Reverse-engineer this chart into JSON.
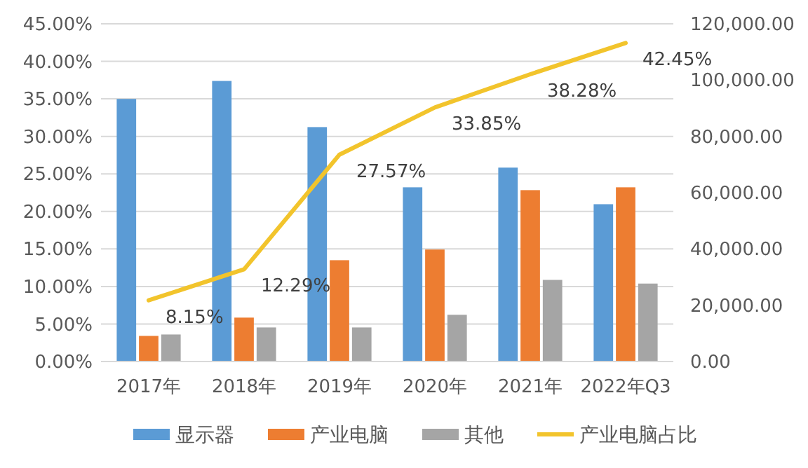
{
  "chart_data": {
    "type": "bar",
    "categories": [
      "2017年",
      "2018年",
      "2019年",
      "2020年",
      "2021年",
      "2022年Q3"
    ],
    "series": [
      {
        "name": "显示器",
        "color": "#5b9bd5",
        "axis": "y2",
        "values": [
          93300,
          99700,
          83300,
          61900,
          68900,
          55900
        ]
      },
      {
        "name": "产业电脑",
        "color": "#ed7d31",
        "axis": "y2",
        "values": [
          9100,
          15600,
          36000,
          39800,
          60900,
          61900
        ]
      },
      {
        "name": "其他",
        "color": "#a5a5a5",
        "axis": "y2",
        "values": [
          9600,
          12100,
          12100,
          16600,
          29000,
          27700
        ]
      },
      {
        "name": "产业电脑占比",
        "type": "line",
        "color": "#f2c42c",
        "values": [
          8.15,
          12.29,
          27.57,
          33.85,
          38.28,
          42.45
        ],
        "value_labels": [
          "8.15%",
          "12.29%",
          "27.57%",
          "33.85%",
          "38.28%",
          "42.45%"
        ]
      }
    ],
    "ylim": [
      0,
      45
    ],
    "yticks": [
      {
        "value": 0,
        "label": "0.00%"
      },
      {
        "value": 5,
        "label": "5.00%"
      },
      {
        "value": 10,
        "label": "10.00%"
      },
      {
        "value": 15,
        "label": "15.00%"
      },
      {
        "value": 20,
        "label": "20.00%"
      },
      {
        "value": 25,
        "label": "25.00%"
      },
      {
        "value": 30,
        "label": "30.00%"
      },
      {
        "value": 35,
        "label": "35.00%"
      },
      {
        "value": 40,
        "label": "40.00%"
      },
      {
        "value": 45,
        "label": "45.00%"
      }
    ],
    "y2lim": [
      0,
      120000
    ],
    "y2ticks": [
      {
        "value": 0,
        "label": "0.00"
      },
      {
        "value": 20000,
        "label": "20,000.00"
      },
      {
        "value": 40000,
        "label": "40,000.00"
      },
      {
        "value": 60000,
        "label": "60,000.00"
      },
      {
        "value": 80000,
        "label": "80,000.00"
      },
      {
        "value": 100000,
        "label": "100,000.00"
      },
      {
        "value": 120000,
        "label": "120,000.00"
      }
    ],
    "grid": "y",
    "legend": "bottom"
  }
}
